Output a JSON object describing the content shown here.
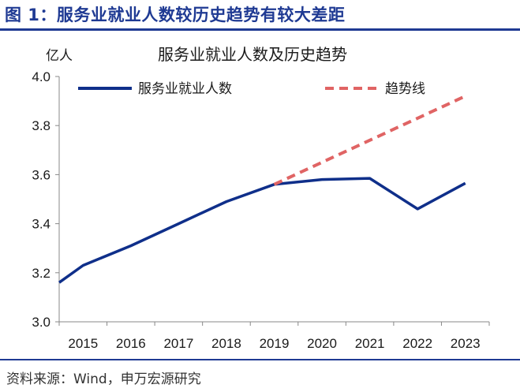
{
  "figure": {
    "title": "图 1：服务业就业人数较历史趋势有较大差距",
    "source": "资料来源：Wind，申万宏源研究"
  },
  "colors": {
    "accent": "#1f3a93",
    "actual": "#0f2f8a",
    "trend": "#e06464"
  },
  "chart_data": {
    "type": "line",
    "title": "服务业就业人数及历史趋势",
    "ylabel": "亿人",
    "xlabel": "",
    "ylim": [
      3.0,
      4.0
    ],
    "yticks": [
      3.0,
      3.2,
      3.4,
      3.6,
      3.8,
      4.0
    ],
    "ytick_labels": [
      "3.0",
      "3.2",
      "3.4",
      "3.6",
      "3.8",
      "4.0"
    ],
    "categories": [
      "2015",
      "2016",
      "2017",
      "2018",
      "2019",
      "2020",
      "2021",
      "2022",
      "2023"
    ],
    "series": [
      {
        "name": "服务业就业人数",
        "style": "solid",
        "x": [
          2014.5,
          2015,
          2016,
          2017,
          2018,
          2019,
          2020,
          2021,
          2022,
          2023
        ],
        "values": [
          3.16,
          3.23,
          3.31,
          3.4,
          3.49,
          3.56,
          3.58,
          3.585,
          3.46,
          3.565
        ]
      },
      {
        "name": "趋势线",
        "style": "dashed",
        "x": [
          2019,
          2023
        ],
        "values": [
          3.56,
          3.92
        ]
      }
    ],
    "legend": "top"
  }
}
